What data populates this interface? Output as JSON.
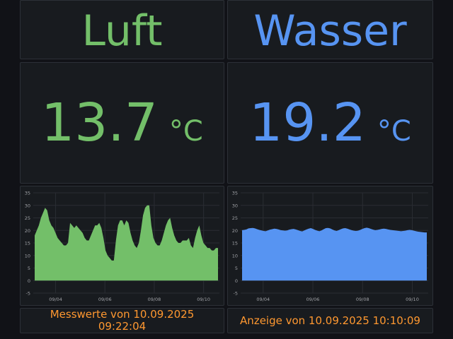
{
  "colors": {
    "air": "#73bf69",
    "water": "#5794f2",
    "footer": "#ff9830"
  },
  "air": {
    "title": "Luft",
    "value": "13.7",
    "unit": "°C"
  },
  "water": {
    "title": "Wasser",
    "value": "19.2",
    "unit": "°C"
  },
  "footer": {
    "measurement_line1": "Messwerte von 10.09.2025",
    "measurement_line2": "09:22:04",
    "display": "Anzeige von 10.09.2025 10:10:09"
  },
  "chart_data": [
    {
      "type": "area",
      "series": [
        {
          "values": [
            18,
            20,
            22,
            25,
            27,
            29,
            28,
            24,
            22,
            21,
            19,
            17,
            16,
            15,
            14,
            14,
            15,
            23,
            22,
            21,
            22,
            21,
            20,
            19,
            17,
            16,
            16,
            18,
            20,
            22,
            22,
            23,
            21,
            17,
            12,
            10,
            9,
            8,
            8,
            16,
            22,
            24,
            24,
            22,
            24,
            23,
            19,
            16,
            14,
            13,
            15,
            20,
            26,
            29,
            30,
            30,
            22,
            17,
            15,
            14,
            14,
            16,
            19,
            22,
            24,
            25,
            21,
            18,
            16,
            15,
            15,
            16,
            16,
            16,
            17,
            14,
            13,
            17,
            20,
            22,
            18,
            15,
            14,
            13,
            13,
            12,
            12,
            13,
            13
          ]
        }
      ],
      "ylim": [
        -5,
        35
      ],
      "yticks": [
        "35",
        "30",
        "25",
        "20",
        "15",
        "10",
        "5",
        "0",
        "-5"
      ],
      "xticks": [
        "09/04",
        "09/06",
        "09/08",
        "09/10"
      ]
    },
    {
      "type": "area",
      "series": [
        {
          "values": [
            20.1,
            20.2,
            20.4,
            20.8,
            20.9,
            21,
            20.8,
            20.5,
            20.2,
            20,
            19.8,
            19.7,
            20,
            20.3,
            20.5,
            20.7,
            20.6,
            20.4,
            20.1,
            20,
            19.9,
            20,
            20.3,
            20.5,
            20.6,
            20.4,
            20.1,
            19.8,
            19.6,
            20,
            20.4,
            20.7,
            20.9,
            20.6,
            20.2,
            19.9,
            19.7,
            20,
            20.5,
            20.9,
            21,
            20.8,
            20.4,
            20,
            19.8,
            20.1,
            20.5,
            20.8,
            20.9,
            20.7,
            20.4,
            20.1,
            19.9,
            19.8,
            19.9,
            20.2,
            20.6,
            20.9,
            21.1,
            20.9,
            20.6,
            20.3,
            20.1,
            20.2,
            20.4,
            20.6,
            20.7,
            20.6,
            20.4,
            20.2,
            20.1,
            20,
            19.9,
            19.8,
            19.7,
            19.8,
            19.9,
            20.1,
            20.2,
            20.1,
            19.9,
            19.7,
            19.5,
            19.4,
            19.3,
            19.2,
            19.2
          ]
        }
      ],
      "ylim": [
        -5,
        35
      ],
      "yticks": [
        "35",
        "30",
        "25",
        "20",
        "15",
        "10",
        "5",
        "0",
        "-5"
      ],
      "xticks": [
        "09/04",
        "09/06",
        "09/08",
        "09/10"
      ]
    }
  ]
}
